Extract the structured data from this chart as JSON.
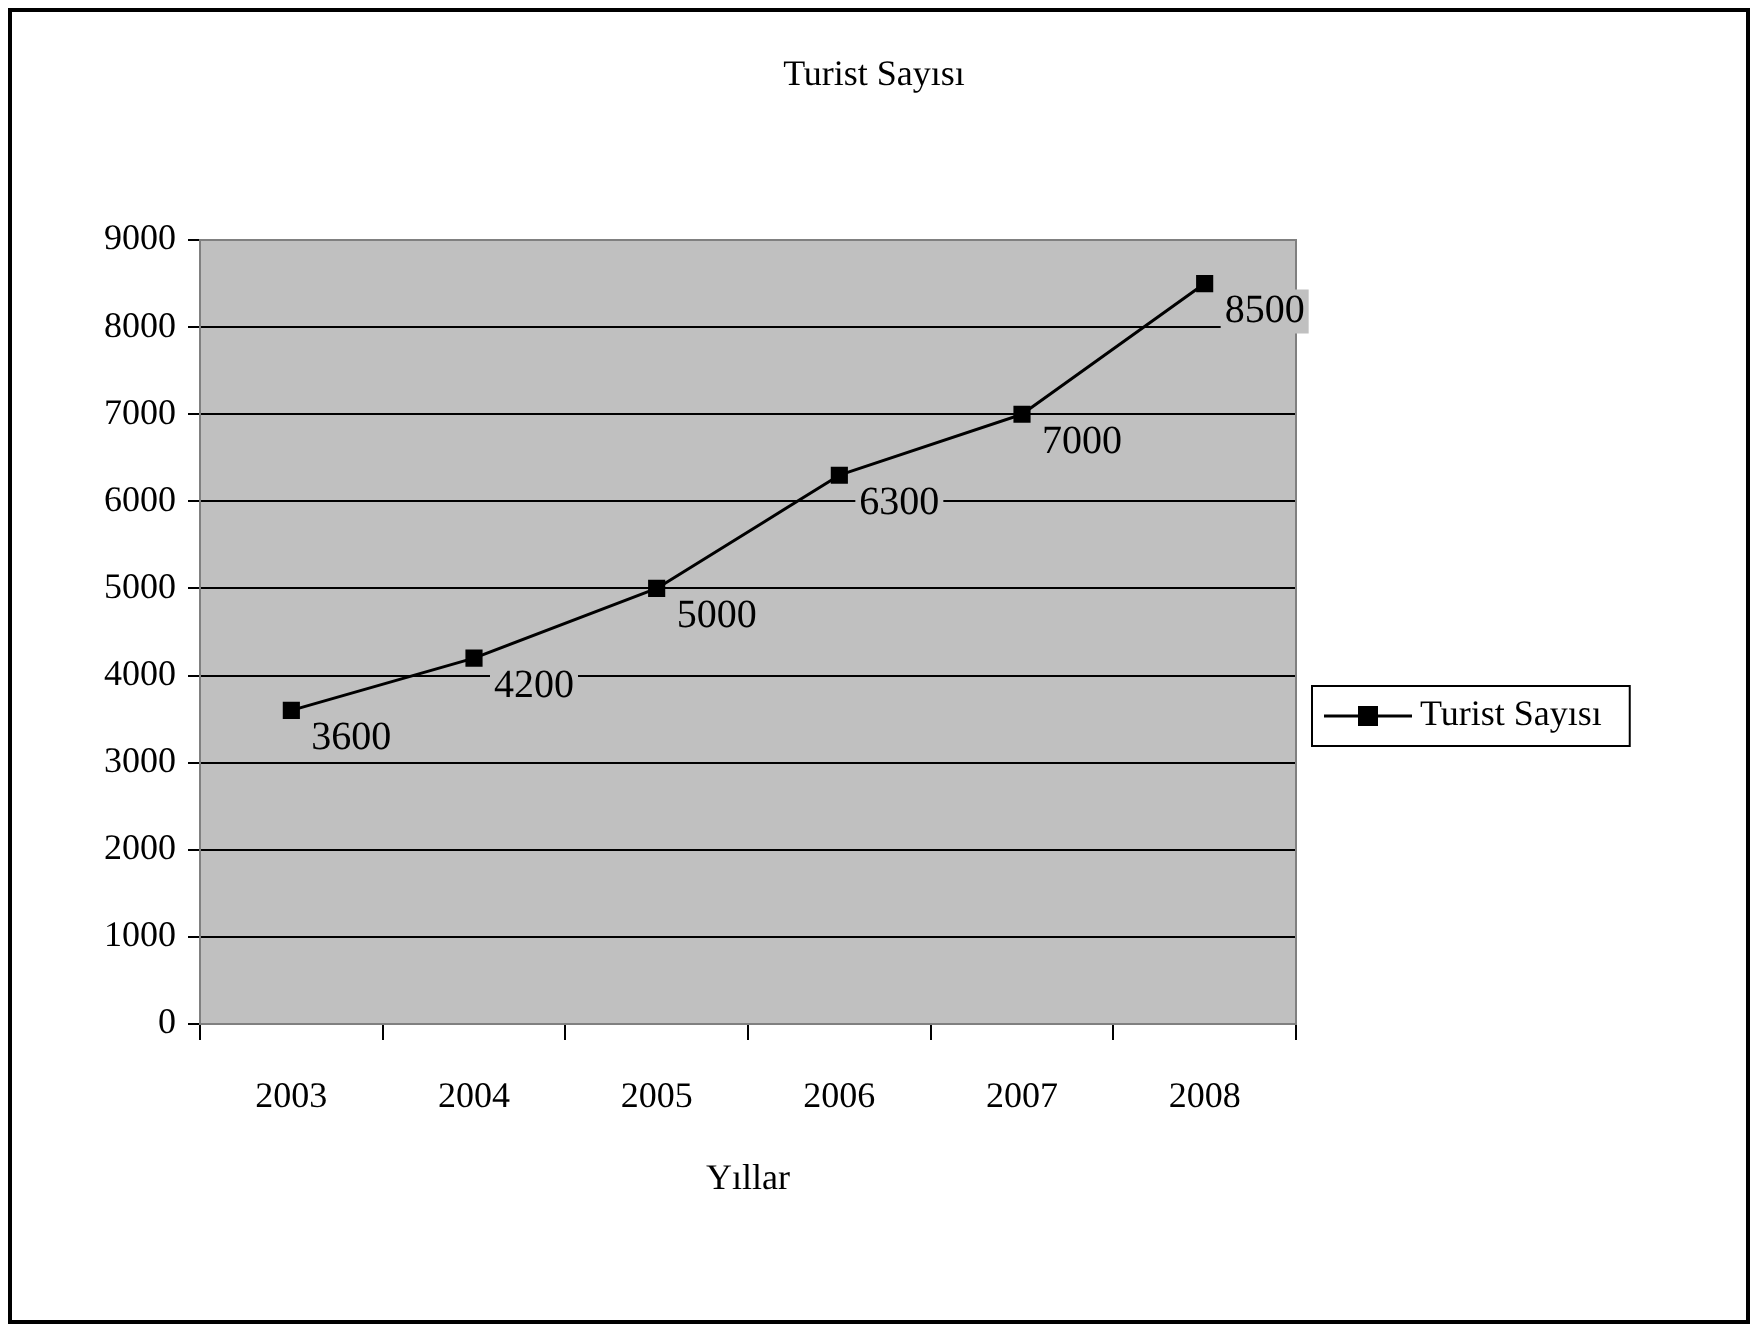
{
  "chart_data": {
    "type": "line",
    "title": "Turist Sayısı",
    "xlabel": "Yıllar",
    "categories": [
      "2003",
      "2004",
      "2005",
      "2006",
      "2007",
      "2008"
    ],
    "series": [
      {
        "name": "Turist Sayısı",
        "color": "#000000",
        "values": [
          3600,
          4200,
          5000,
          6300,
          7000,
          8500
        ]
      }
    ],
    "ylim": [
      0,
      9000
    ],
    "yticks": [
      0,
      1000,
      2000,
      3000,
      4000,
      5000,
      6000,
      7000,
      8000,
      9000
    ],
    "grid": "y",
    "legend": "right",
    "marker": "square",
    "data_labels": true
  }
}
